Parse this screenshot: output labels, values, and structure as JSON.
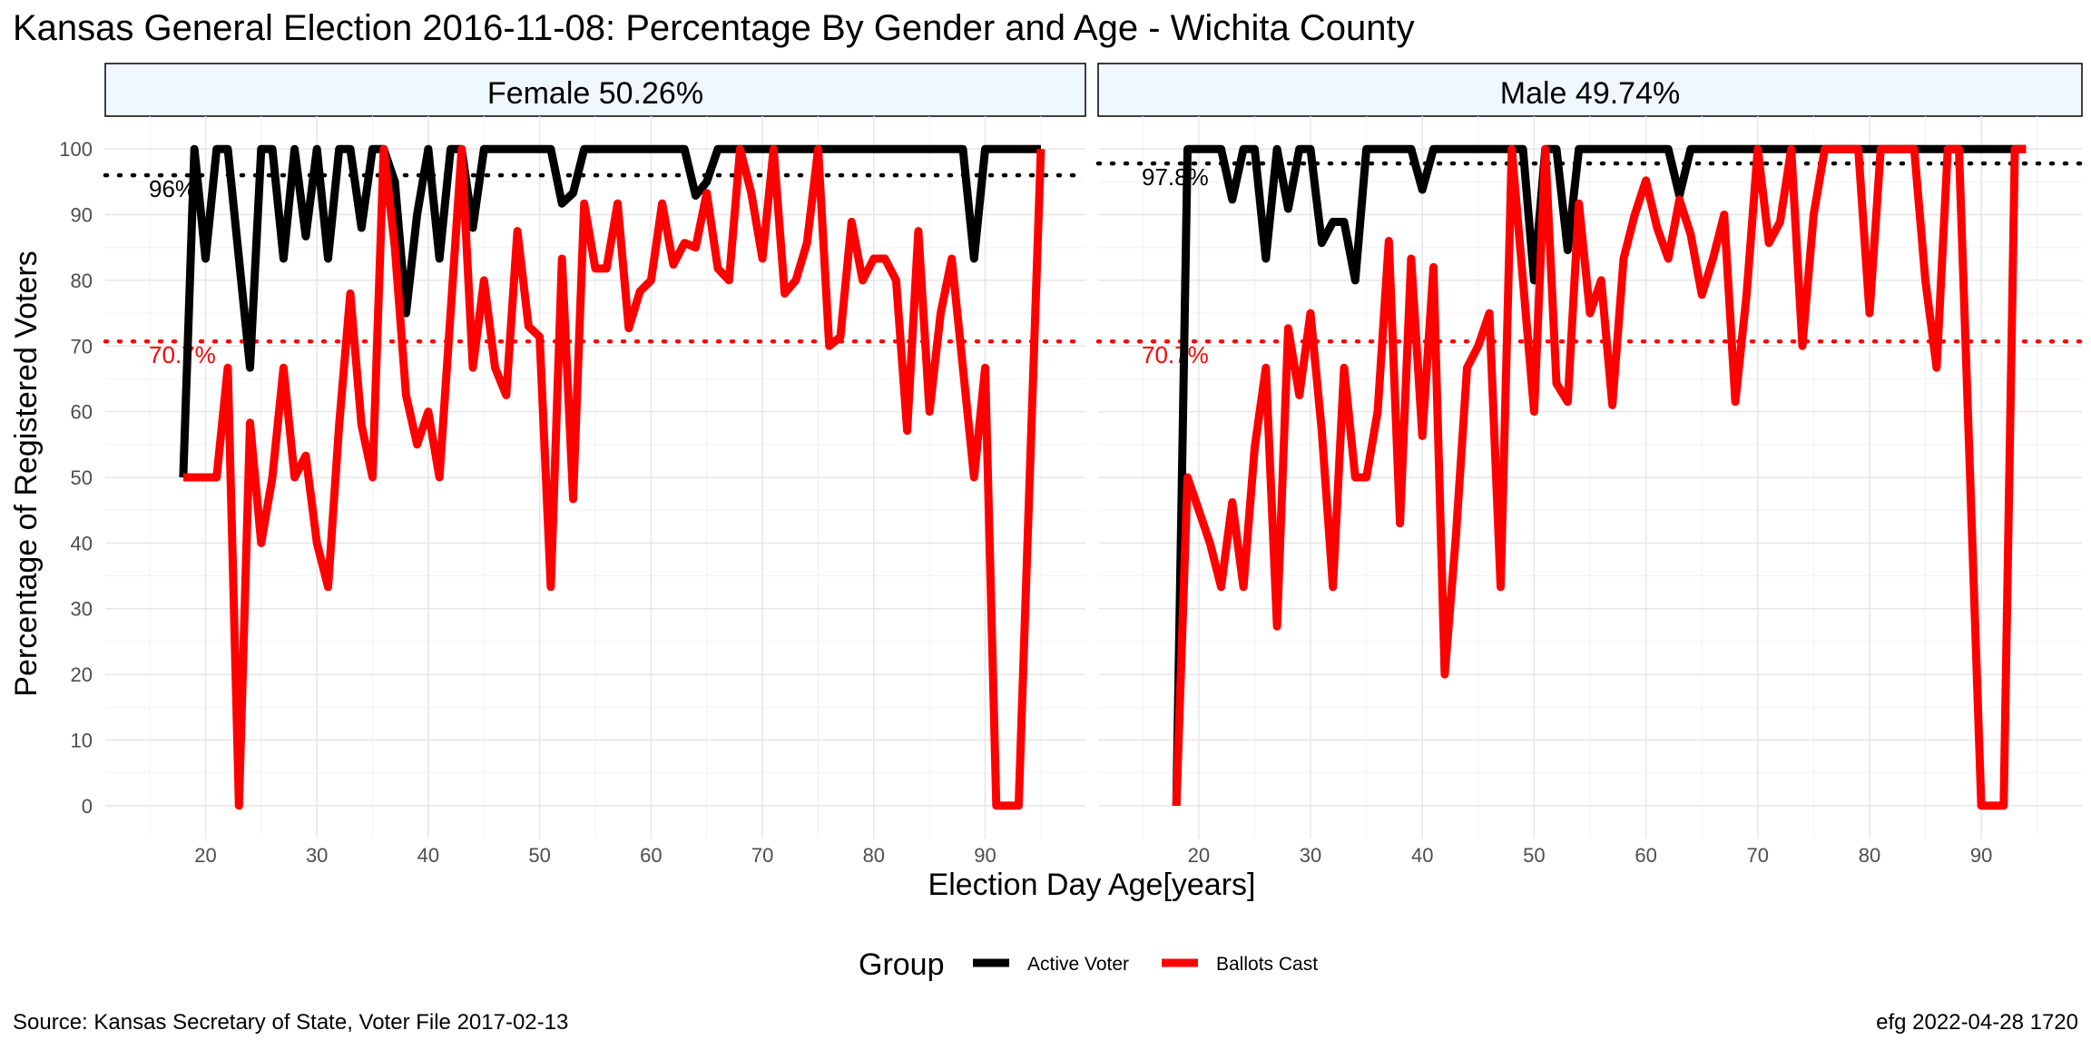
{
  "chart_data": {
    "type": "line",
    "title": "Kansas General Election 2016-11-08:  Percentage By Gender and Age - Wichita County",
    "xlabel": "Election Day Age[years]",
    "ylabel": "Percentage of Registered Voters",
    "xlim": [
      11,
      99
    ],
    "ylim": [
      -5,
      105
    ],
    "xticks": [
      20,
      30,
      40,
      50,
      60,
      70,
      80,
      90
    ],
    "yticks": [
      0,
      10,
      20,
      30,
      40,
      50,
      60,
      70,
      80,
      90,
      100
    ],
    "grid": true,
    "legend": {
      "title": "Group",
      "position": "bottom",
      "entries": [
        {
          "label": "Active Voter",
          "color": "#000000"
        },
        {
          "label": "Ballots Cast",
          "color": "#ff0000"
        }
      ]
    },
    "source": "Source:  Kansas Secretary of State, Voter File  2017-02-13",
    "credit": "efg 2022-04-28 1720",
    "panels": [
      {
        "strip": "Female 50.26%",
        "reference_lines": [
          {
            "value": 96,
            "label": "96%",
            "color": "#000000"
          },
          {
            "value": 70.7,
            "label": "70.7%",
            "color": "#ff0000"
          }
        ],
        "series": [
          {
            "name": "Active Voter",
            "color": "#000000",
            "x": [
              18,
              19,
              20,
              21,
              22,
              23,
              24,
              25,
              26,
              27,
              28,
              29,
              30,
              31,
              32,
              33,
              34,
              35,
              36,
              37,
              38,
              39,
              40,
              41,
              42,
              43,
              44,
              45,
              46,
              47,
              48,
              49,
              50,
              51,
              52,
              53,
              54,
              55,
              56,
              57,
              58,
              59,
              60,
              61,
              62,
              63,
              64,
              65,
              66,
              67,
              68,
              69,
              70,
              71,
              72,
              73,
              74,
              75,
              76,
              77,
              78,
              79,
              80,
              81,
              82,
              83,
              84,
              85,
              86,
              87,
              88,
              89,
              90,
              91,
              92,
              93,
              94,
              95
            ],
            "y": [
              50,
              100,
              83.3,
              100,
              100,
              83.3,
              66.7,
              100,
              100,
              83.3,
              100,
              86.7,
              100,
              83.3,
              100,
              100,
              88,
              100,
              100,
              95,
              75,
              90,
              100,
              83.3,
              100,
              100,
              88,
              100,
              100,
              100,
              100,
              100,
              100,
              100,
              91.7,
              93.3,
              100,
              100,
              100,
              100,
              100,
              100,
              100,
              100,
              100,
              100,
              92.9,
              95,
              100,
              100,
              100,
              100,
              100,
              100,
              100,
              100,
              100,
              100,
              100,
              100,
              100,
              100,
              100,
              100,
              100,
              100,
              100,
              100,
              100,
              100,
              100,
              83.3,
              100,
              100,
              100,
              100,
              100,
              100
            ]
          },
          {
            "name": "Ballots Cast",
            "color": "#ff0000",
            "x": [
              18,
              19,
              20,
              21,
              22,
              23,
              24,
              25,
              26,
              27,
              28,
              29,
              30,
              31,
              32,
              33,
              34,
              35,
              36,
              37,
              38,
              39,
              40,
              41,
              42,
              43,
              44,
              45,
              46,
              47,
              48,
              49,
              50,
              51,
              52,
              53,
              54,
              55,
              56,
              57,
              58,
              59,
              60,
              61,
              62,
              63,
              64,
              65,
              66,
              67,
              68,
              69,
              70,
              71,
              72,
              73,
              74,
              75,
              76,
              77,
              78,
              79,
              80,
              81,
              82,
              83,
              84,
              85,
              86,
              87,
              88,
              89,
              90,
              91,
              92,
              93,
              94,
              95
            ],
            "y": [
              50,
              50,
              50,
              50,
              66.7,
              0,
              58.3,
              40,
              50,
              66.7,
              50,
              53.3,
              40,
              33.3,
              58,
              78,
              58,
              50,
              100,
              85,
              62.5,
              55,
              60,
              50,
              75,
              100,
              66.7,
              80,
              66.7,
              62.5,
              87.5,
              73,
              71.4,
              33.3,
              83.3,
              46.7,
              91.7,
              81.8,
              81.8,
              91.7,
              72.7,
              78.3,
              80,
              91.7,
              82.4,
              85.7,
              85,
              93.3,
              81.8,
              80,
              100,
              93.3,
              83.3,
              100,
              78,
              80,
              85.7,
              100,
              70,
              71.4,
              88.9,
              80,
              83.3,
              83.3,
              80,
              57.1,
              87.5,
              60,
              75,
              83.3,
              66.7,
              50,
              66.7,
              0,
              0,
              0,
              50,
              100
            ]
          }
        ]
      },
      {
        "strip": "Male 49.74%",
        "reference_lines": [
          {
            "value": 97.8,
            "label": "97.8%",
            "color": "#000000"
          },
          {
            "value": 70.7,
            "label": "70.7%",
            "color": "#ff0000"
          }
        ],
        "series": [
          {
            "name": "Active Voter",
            "color": "#000000",
            "x": [
              18,
              19,
              20,
              21,
              22,
              23,
              24,
              25,
              26,
              27,
              28,
              29,
              30,
              31,
              32,
              33,
              34,
              35,
              36,
              37,
              38,
              39,
              40,
              41,
              42,
              43,
              44,
              45,
              46,
              47,
              48,
              49,
              50,
              51,
              52,
              53,
              54,
              55,
              56,
              57,
              58,
              59,
              60,
              61,
              62,
              63,
              64,
              65,
              66,
              67,
              68,
              69,
              70,
              71,
              72,
              73,
              74,
              75,
              76,
              77,
              78,
              79,
              80,
              81,
              82,
              83,
              84,
              85,
              86,
              87,
              88,
              89,
              90,
              91,
              92,
              93,
              94
            ],
            "y": [
              0,
              100,
              100,
              100,
              100,
              92.3,
              100,
              100,
              83.3,
              100,
              90.9,
              100,
              100,
              85.7,
              88.9,
              88.9,
              80,
              100,
              100,
              100,
              100,
              100,
              93.8,
              100,
              100,
              100,
              100,
              100,
              100,
              100,
              100,
              100,
              80,
              100,
              100,
              84.6,
              100,
              100,
              100,
              100,
              100,
              100,
              100,
              100,
              100,
              92.9,
              100,
              100,
              100,
              100,
              100,
              100,
              100,
              100,
              100,
              100,
              100,
              100,
              100,
              100,
              100,
              100,
              100,
              100,
              100,
              100,
              100,
              100,
              100,
              100,
              100,
              100,
              100,
              100,
              100,
              100,
              100
            ]
          },
          {
            "name": "Ballots Cast",
            "color": "#ff0000",
            "x": [
              18,
              19,
              20,
              21,
              22,
              23,
              24,
              25,
              26,
              27,
              28,
              29,
              30,
              31,
              32,
              33,
              34,
              35,
              36,
              37,
              38,
              39,
              40,
              41,
              42,
              43,
              44,
              45,
              46,
              47,
              48,
              49,
              50,
              51,
              52,
              53,
              54,
              55,
              56,
              57,
              58,
              59,
              60,
              61,
              62,
              63,
              64,
              65,
              66,
              67,
              68,
              69,
              70,
              71,
              72,
              73,
              74,
              75,
              76,
              77,
              78,
              79,
              80,
              81,
              82,
              83,
              84,
              85,
              86,
              87,
              88,
              89,
              90,
              91,
              92,
              93,
              94
            ],
            "y": [
              0,
              50,
              45,
              40,
              33.3,
              46.2,
              33.3,
              54.5,
              66.7,
              27.3,
              72.7,
              62.5,
              75,
              57.1,
              33.3,
              66.7,
              50,
              50,
              60,
              86,
              43,
              83.3,
              56.3,
              82,
              20,
              41,
              66.7,
              70,
              75,
              33.3,
              100,
              80,
              60,
              100,
              64.3,
              61.5,
              91.7,
              75,
              80,
              61,
              83.3,
              90,
              95.2,
              88,
              83.3,
              92.3,
              87,
              77.8,
              83.3,
              90,
              61.5,
              77.8,
              100,
              85.7,
              88.9,
              100,
              70,
              90,
              100,
              100,
              100,
              100,
              75,
              100,
              100,
              100,
              100,
              80,
              66.7,
              100,
              100,
              50,
              0,
              0,
              0,
              100,
              100
            ]
          }
        ]
      }
    ]
  }
}
